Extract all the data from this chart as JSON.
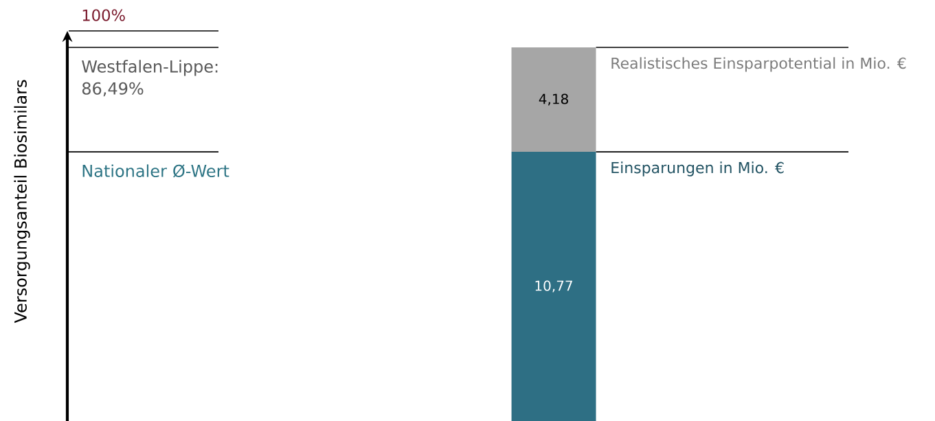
{
  "chart_data": {
    "type": "bar",
    "stacked": true,
    "categories": [
      null
    ],
    "series": [
      {
        "name": "Einsparungen in Mio. €",
        "color": "#2e6f84",
        "values": [
          10.77
        ],
        "value_labels": [
          "10,77"
        ]
      },
      {
        "name": "Realistisches Einsparpotential in Mio. €",
        "color": "#a6a6a6",
        "values": [
          4.18
        ],
        "value_labels": [
          "4,18"
        ]
      }
    ],
    "annotations": [
      "100%",
      "Westfalen-Lippe: 86,49%",
      "Nationaler Ø-Wert",
      "Versorgungsanteil Biosimilars"
    ]
  }
}
